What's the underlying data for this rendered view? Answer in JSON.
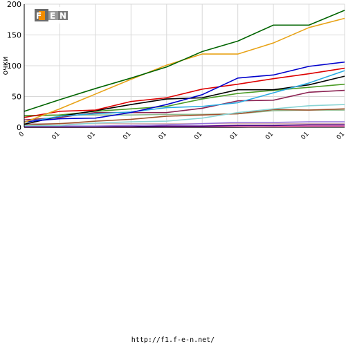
{
  "logo": {
    "text": "F1EN"
  },
  "footer": {
    "url": "http://f1.f-e-n.net/"
  },
  "chart_data": {
    "type": "line",
    "title": "",
    "xlabel": "",
    "ylabel": "очки",
    "ylim": [
      0,
      200
    ],
    "yticks": [
      0,
      50,
      100,
      150,
      200
    ],
    "grid": true,
    "legend": "none",
    "categories": [
      "0",
      "01",
      "01",
      "01",
      "01",
      "01",
      "01",
      "01",
      "01",
      "01"
    ],
    "series": [
      {
        "color": "#006400",
        "values": [
          26,
          45,
          63,
          80,
          98,
          123,
          140,
          166,
          166,
          190
        ]
      },
      {
        "color": "#e8a317",
        "values": [
          8,
          30,
          54,
          78,
          101,
          119,
          119,
          137,
          162,
          177
        ]
      },
      {
        "color": "#0000cc",
        "values": [
          9,
          14,
          15,
          24,
          37,
          53,
          80,
          85,
          99,
          106
        ]
      },
      {
        "color": "#dd0000",
        "values": [
          16,
          26,
          28,
          42,
          48,
          62,
          70,
          79,
          87,
          96
        ]
      },
      {
        "color": "#29abe2",
        "values": [
          8,
          18,
          22,
          25,
          32,
          34,
          40,
          56,
          72,
          92
        ]
      },
      {
        "color": "#000000",
        "values": [
          5,
          18,
          27,
          37,
          46,
          48,
          61,
          61,
          69,
          83
        ]
      },
      {
        "color": "#4a9b24",
        "values": [
          19,
          20,
          26,
          30,
          34,
          46,
          55,
          60,
          65,
          70
        ]
      },
      {
        "color": "#8b2252",
        "values": [
          12,
          16,
          24,
          24,
          24,
          31,
          43,
          44,
          57,
          60
        ]
      },
      {
        "color": "#88d4d4",
        "values": [
          3,
          3,
          7,
          9,
          10,
          15,
          24,
          30,
          35,
          37
        ]
      },
      {
        "color": "#a0522d",
        "values": [
          4,
          6,
          10,
          13,
          18,
          20,
          22,
          29,
          28,
          30
        ]
      },
      {
        "color": "#8fbc8f",
        "values": [
          18,
          20,
          20,
          20,
          21,
          21,
          22,
          27,
          28,
          28
        ]
      },
      {
        "color": "#9370db",
        "values": [
          2,
          2,
          2,
          3,
          4,
          6,
          8,
          8,
          9,
          9
        ]
      },
      {
        "color": "#d8b4b4",
        "values": [
          6,
          6,
          6,
          6,
          6,
          6,
          6,
          6,
          6,
          6
        ]
      },
      {
        "color": "#4b0082",
        "values": [
          1,
          1,
          1,
          1,
          2,
          2,
          3,
          3,
          4,
          4
        ]
      },
      {
        "color": "#ff69b4",
        "values": [
          0,
          0,
          0,
          0,
          1,
          1,
          1,
          1,
          2,
          2
        ]
      },
      {
        "color": "#708090",
        "values": [
          0,
          0,
          0,
          0,
          0,
          0,
          0,
          1,
          1,
          1
        ]
      }
    ]
  }
}
